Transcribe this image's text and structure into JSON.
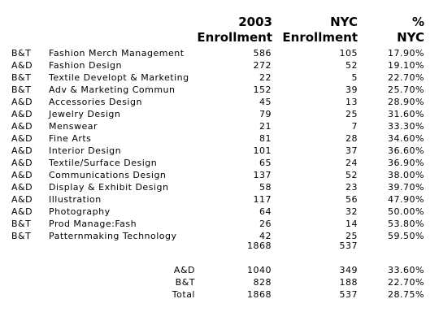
{
  "headers": {
    "enrollment": [
      "2003",
      "Enrollment"
    ],
    "nyc": [
      "NYC",
      "Enrollment"
    ],
    "pct": [
      "%",
      "NYC"
    ]
  },
  "rows": [
    {
      "school": "B&T",
      "program": "Fashion Merch Management",
      "enrollment": "586",
      "nyc": "105",
      "pct": "17.90%"
    },
    {
      "school": "A&D",
      "program": "Fashion Design",
      "enrollment": "272",
      "nyc": "52",
      "pct": "19.10%"
    },
    {
      "school": "B&T",
      "program": "Textile Developt & Marketing",
      "enrollment": "22",
      "nyc": "5",
      "pct": "22.70%"
    },
    {
      "school": "B&T",
      "program": "Adv & Marketing Commun",
      "enrollment": "152",
      "nyc": "39",
      "pct": "25.70%"
    },
    {
      "school": "A&D",
      "program": "Accessories Design",
      "enrollment": "45",
      "nyc": "13",
      "pct": "28.90%"
    },
    {
      "school": "A&D",
      "program": "Jewelry Design",
      "enrollment": "79",
      "nyc": "25",
      "pct": "31.60%"
    },
    {
      "school": "A&D",
      "program": "Menswear",
      "enrollment": "21",
      "nyc": "7",
      "pct": "33.30%"
    },
    {
      "school": "A&D",
      "program": "Fine Arts",
      "enrollment": "81",
      "nyc": "28",
      "pct": "34.60%"
    },
    {
      "school": "A&D",
      "program": "Interior Design",
      "enrollment": "101",
      "nyc": "37",
      "pct": "36.60%"
    },
    {
      "school": "A&D",
      "program": "Textile/Surface Design",
      "enrollment": "65",
      "nyc": "24",
      "pct": "36.90%"
    },
    {
      "school": "A&D",
      "program": "Communications Design",
      "enrollment": "137",
      "nyc": "52",
      "pct": "38.00%"
    },
    {
      "school": "A&D",
      "program": "Display & Exhibit Design",
      "enrollment": "58",
      "nyc": "23",
      "pct": "39.70%"
    },
    {
      "school": "A&D",
      "program": "Illustration",
      "enrollment": "117",
      "nyc": "56",
      "pct": "47.90%"
    },
    {
      "school": "A&D",
      "program": "Photography",
      "enrollment": "64",
      "nyc": "32",
      "pct": "50.00%"
    },
    {
      "school": "B&T",
      "program": "Prod Manage:Fash",
      "enrollment": "26",
      "nyc": "14",
      "pct": "53.80%"
    },
    {
      "school": "B&T",
      "program": "Patternmaking Technology",
      "enrollment": "42",
      "nyc": "25",
      "pct": "59.50%"
    }
  ],
  "totals": {
    "enrollment": "1868",
    "nyc": "537"
  },
  "summary": [
    {
      "label": "A&D",
      "enrollment": "1040",
      "nyc": "349",
      "pct": "33.60%"
    },
    {
      "label": "B&T",
      "enrollment": "828",
      "nyc": "188",
      "pct": "22.70%"
    },
    {
      "label": "Total",
      "enrollment": "1868",
      "nyc": "537",
      "pct": "28.75%"
    }
  ]
}
